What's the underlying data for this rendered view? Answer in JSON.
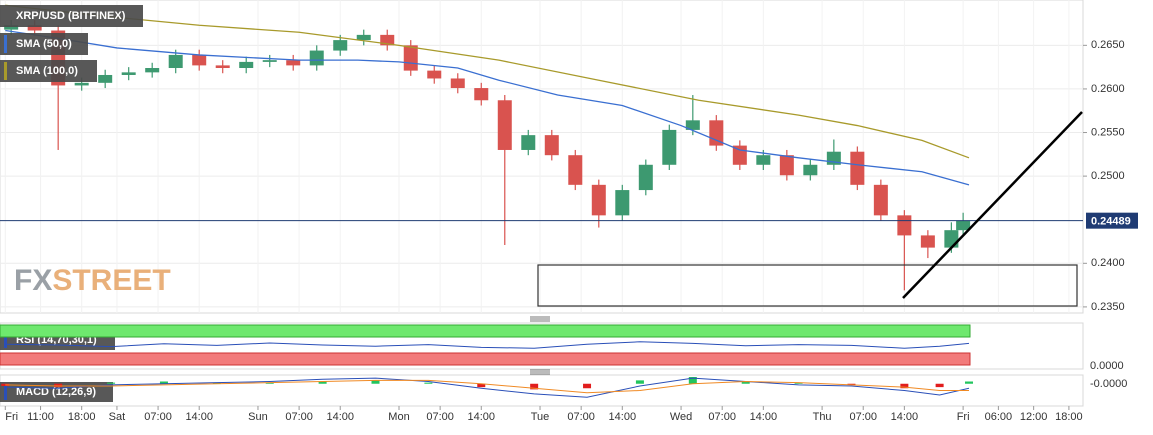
{
  "chart_data": {
    "type": "candlestick",
    "title": "XRP/USD (BITFINEX)",
    "x": [
      -18,
      -14,
      -10,
      -6,
      -2,
      2,
      6,
      10,
      14,
      18,
      22,
      26,
      30,
      34,
      38,
      42,
      46,
      50,
      54,
      58,
      62,
      66,
      70,
      74,
      78,
      82,
      86,
      90,
      94,
      98,
      102,
      106,
      110,
      114,
      118,
      122,
      126,
      130,
      134,
      138,
      142,
      144
    ],
    "open": [
      0.2668,
      0.2673,
      0.2667,
      0.2604,
      0.2607,
      0.2616,
      0.2619,
      0.2624,
      0.2639,
      0.2627,
      0.2624,
      0.2631,
      0.2633,
      0.2627,
      0.2644,
      0.2656,
      0.2662,
      0.265,
      0.2621,
      0.2612,
      0.2601,
      0.2587,
      0.253,
      0.2547,
      0.2524,
      0.249,
      0.2455,
      0.2484,
      0.2513,
      0.2553,
      0.2564,
      0.2535,
      0.2513,
      0.2524,
      0.2501,
      0.2513,
      0.2528,
      0.249,
      0.2455,
      0.2432,
      0.2418,
      0.2438
    ],
    "high": [
      0.2679,
      0.2679,
      0.2673,
      0.2613,
      0.2622,
      0.2625,
      0.263,
      0.2645,
      0.2645,
      0.2633,
      0.2637,
      0.2639,
      0.2639,
      0.265,
      0.2662,
      0.2668,
      0.2668,
      0.2656,
      0.2627,
      0.2618,
      0.2607,
      0.2593,
      0.2553,
      0.2553,
      0.253,
      0.2496,
      0.249,
      0.2519,
      0.2559,
      0.2593,
      0.257,
      0.2541,
      0.253,
      0.253,
      0.2519,
      0.2542,
      0.2534,
      0.2496,
      0.2461,
      0.2438,
      0.2447,
      0.2458
    ],
    "low": [
      0.2662,
      0.2661,
      0.253,
      0.2598,
      0.2601,
      0.261,
      0.2613,
      0.2618,
      0.2621,
      0.2618,
      0.2618,
      0.2625,
      0.2621,
      0.2621,
      0.2638,
      0.265,
      0.2644,
      0.2615,
      0.2606,
      0.2595,
      0.2581,
      0.2421,
      0.2524,
      0.2518,
      0.2484,
      0.2441,
      0.2449,
      0.2478,
      0.2507,
      0.2547,
      0.2529,
      0.2507,
      0.2507,
      0.2495,
      0.2495,
      0.2507,
      0.2484,
      0.2449,
      0.2369,
      0.2406,
      0.2412,
      0.2432
    ],
    "close": [
      0.2673,
      0.2667,
      0.2604,
      0.2607,
      0.2616,
      0.2619,
      0.2624,
      0.2639,
      0.2627,
      0.2624,
      0.2631,
      0.2633,
      0.2627,
      0.2644,
      0.2656,
      0.2662,
      0.265,
      0.2621,
      0.2612,
      0.2601,
      0.2587,
      0.253,
      0.2547,
      0.2524,
      0.249,
      0.2455,
      0.2484,
      0.2513,
      0.2553,
      0.2564,
      0.2535,
      0.2513,
      0.2524,
      0.2501,
      0.2513,
      0.2528,
      0.249,
      0.2455,
      0.2432,
      0.2418,
      0.2438,
      0.24489
    ],
    "up_color": "#3d9970",
    "down_color": "#d9534f",
    "series": [
      {
        "name": "SMA (50,0)",
        "color": "#3a6fd1",
        "x": [
          -19,
          -10,
          0,
          14,
          31,
          41,
          48,
          58,
          65,
          75,
          86,
          96,
          106,
          116,
          126,
          137,
          145
        ],
        "values": [
          0.2667,
          0.2658,
          0.2647,
          0.2639,
          0.2633,
          0.2633,
          0.2631,
          0.2624,
          0.261,
          0.2593,
          0.2581,
          0.2558,
          0.253,
          0.2521,
          0.2513,
          0.2505,
          0.249
        ]
      },
      {
        "name": "SMA (100,0)",
        "color": "#a89a2b",
        "x": [
          -19,
          -3,
          14,
          31,
          48,
          65,
          82,
          99,
          116,
          126,
          137,
          145
        ],
        "values": [
          0.2696,
          0.2684,
          0.2673,
          0.2665,
          0.265,
          0.2633,
          0.261,
          0.2587,
          0.257,
          0.2558,
          0.2541,
          0.2521
        ]
      }
    ],
    "last_price": 0.24489,
    "last_price_color": "#1f3b73",
    "ylim": [
      0.2343,
      0.2702
    ],
    "yticks": [
      {
        "value": 0.265,
        "label": "0.2650"
      },
      {
        "value": 0.26,
        "label": "0.2600"
      },
      {
        "value": 0.255,
        "label": "0.2550"
      },
      {
        "value": 0.25,
        "label": "0.2500"
      },
      {
        "value": 0.24,
        "label": "0.2400"
      },
      {
        "value": 0.235,
        "label": "0.2350"
      }
    ],
    "xlim": [
      -19.9,
      164.4
    ],
    "xticks": [
      {
        "value": -19,
        "label": "Fri"
      },
      {
        "value": -13,
        "label": "11:00"
      },
      {
        "value": -6,
        "label": "18:00"
      },
      {
        "value": 0,
        "label": "Sat"
      },
      {
        "value": 7,
        "label": "07:00"
      },
      {
        "value": 14,
        "label": "14:00"
      },
      {
        "value": 24,
        "label": "Sun"
      },
      {
        "value": 31,
        "label": "07:00"
      },
      {
        "value": 38,
        "label": "14:00"
      },
      {
        "value": 48,
        "label": "Mon"
      },
      {
        "value": 55,
        "label": "07:00"
      },
      {
        "value": 62,
        "label": "14:00"
      },
      {
        "value": 72,
        "label": "Tue"
      },
      {
        "value": 79,
        "label": "07:00"
      },
      {
        "value": 86,
        "label": "14:00"
      },
      {
        "value": 96,
        "label": "Wed"
      },
      {
        "value": 103,
        "label": "07:00"
      },
      {
        "value": 110,
        "label": "14:00"
      },
      {
        "value": 120,
        "label": "Thu"
      },
      {
        "value": 127,
        "label": "07:00"
      },
      {
        "value": 134,
        "label": "14:00"
      },
      {
        "value": 144,
        "label": "Fri"
      },
      {
        "value": 150,
        "label": "06:00"
      },
      {
        "value": 156,
        "label": "12:00"
      },
      {
        "value": 162,
        "label": "18:00"
      }
    ],
    "grid": true
  },
  "rsi": {
    "title": "RSI (14,70,30,1)",
    "axis_label": "0.0000",
    "ylim": [
      0,
      100
    ],
    "overbought": 70,
    "oversold": 30,
    "color": "#2a4fb8",
    "x": [
      -19,
      -10,
      -1,
      8,
      17,
      26,
      35,
      44,
      53,
      62,
      71,
      80,
      89,
      98,
      107,
      116,
      125,
      134,
      140,
      145
    ],
    "values": [
      52,
      50,
      46,
      53,
      49,
      55,
      50,
      47,
      51,
      44,
      42,
      52,
      58,
      54,
      48,
      51,
      49,
      42,
      47,
      54
    ]
  },
  "macd": {
    "title": "MACD (12,26,9)",
    "axis_label": "-0.0000",
    "ylim": [
      -0.0018,
      0.0006
    ],
    "x": [
      -19,
      -10,
      -1,
      8,
      17,
      26,
      35,
      44,
      53,
      62,
      71,
      80,
      89,
      98,
      107,
      116,
      125,
      134,
      140,
      145
    ],
    "histogram": [
      -0.0002,
      -0.0003,
      0.0001,
      0.0002,
      0.0001,
      0.0001,
      0.0002,
      0.0003,
      0.0001,
      -0.0003,
      -0.0005,
      -0.0004,
      0.0003,
      0.0006,
      0.0002,
      0.0001,
      -0.0001,
      -0.0004,
      -0.0003,
      0.0002
    ],
    "macd_line": [
      -0.0003,
      -0.0004,
      -0.0001,
      0.0,
      0.0001,
      0.0002,
      0.0004,
      0.0005,
      0.0002,
      -0.0004,
      -0.0009,
      -0.0012,
      -0.0002,
      0.0005,
      0.0002,
      -0.0001,
      -0.0002,
      -0.0006,
      -0.001,
      -0.0004
    ],
    "signal_line": [
      -0.0001,
      -0.0002,
      -0.0002,
      -0.0001,
      0.0,
      0.0001,
      0.0002,
      0.0003,
      0.0003,
      0.0,
      -0.0004,
      -0.0008,
      -0.0006,
      0.0,
      0.0002,
      0.0001,
      -0.0001,
      -0.0003,
      -0.0006,
      -0.0006
    ],
    "pos_color": "#22c55e",
    "neg_color": "#e11d1d",
    "macd_color": "#2a4fb8",
    "signal_color": "#f08a24"
  },
  "watermark": {
    "part1": "FX",
    "part2": "STREET"
  }
}
